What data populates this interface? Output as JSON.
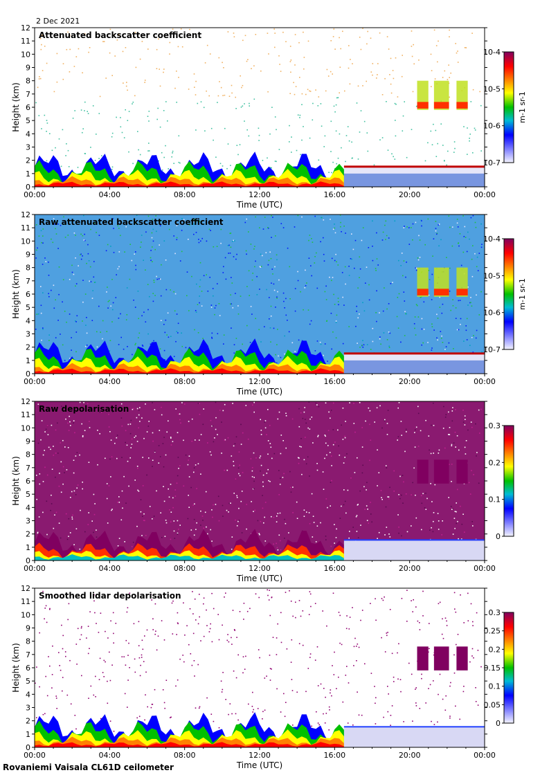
{
  "date_label": "2 Dec 2021",
  "footer": "Rovaniemi Vaisala CL61D ceilometer",
  "chart_data": [
    {
      "type": "heatmap",
      "title": "Attenuated backscatter coefficient",
      "xlabel": "Time (UTC)",
      "ylabel": "Height (km)",
      "xlim": [
        0,
        24
      ],
      "ylim": [
        0,
        12
      ],
      "x_ticks": [
        "00:00",
        "04:00",
        "08:00",
        "12:00",
        "16:00",
        "20:00",
        "00:00"
      ],
      "y_ticks": [
        0,
        1,
        2,
        3,
        4,
        5,
        6,
        7,
        8,
        9,
        10,
        11,
        12
      ],
      "colorbar": {
        "scale": "log",
        "range": [
          1e-07,
          0.0001
        ],
        "tick_labels": [
          "10-7",
          "10-6",
          "10-5",
          "10-4"
        ],
        "unit": "m-1 sr-1"
      },
      "grid": false
    },
    {
      "type": "heatmap",
      "title": "Raw attenuated backscatter coefficient",
      "xlabel": "Time (UTC)",
      "ylabel": "Height (km)",
      "xlim": [
        0,
        24
      ],
      "ylim": [
        0,
        12
      ],
      "x_ticks": [
        "00:00",
        "04:00",
        "08:00",
        "12:00",
        "16:00",
        "20:00",
        "00:00"
      ],
      "y_ticks": [
        0,
        1,
        2,
        3,
        4,
        5,
        6,
        7,
        8,
        9,
        10,
        11,
        12
      ],
      "colorbar": {
        "scale": "log",
        "range": [
          1e-07,
          0.0001
        ],
        "tick_labels": [
          "10-7",
          "10-6",
          "10-5",
          "10-4"
        ],
        "unit": "m-1 sr-1"
      },
      "grid": false
    },
    {
      "type": "heatmap",
      "title": "Raw depolarisation",
      "xlabel": "Time (UTC)",
      "ylabel": "Height (km)",
      "xlim": [
        0,
        24
      ],
      "ylim": [
        0,
        12
      ],
      "x_ticks": [
        "00:00",
        "04:00",
        "08:00",
        "12:00",
        "16:00",
        "20:00",
        "00:00"
      ],
      "y_ticks": [
        0,
        1,
        2,
        3,
        4,
        5,
        6,
        7,
        8,
        9,
        10,
        11,
        12
      ],
      "colorbar": {
        "scale": "linear",
        "range": [
          0,
          0.3
        ],
        "tick_labels": [
          "0",
          "0.1",
          "0.2",
          "0.3"
        ],
        "unit": ""
      },
      "grid": false
    },
    {
      "type": "heatmap",
      "title": "Smoothed lidar depolarisation",
      "xlabel": "Time (UTC)",
      "ylabel": "Height (km)",
      "xlim": [
        0,
        24
      ],
      "ylim": [
        0,
        12
      ],
      "x_ticks": [
        "00:00",
        "04:00",
        "08:00",
        "12:00",
        "16:00",
        "20:00",
        "00:00"
      ],
      "y_ticks": [
        0,
        1,
        2,
        3,
        4,
        5,
        6,
        7,
        8,
        9,
        10,
        11,
        12
      ],
      "colorbar": {
        "scale": "linear",
        "range": [
          0,
          0.3
        ],
        "tick_labels": [
          "0",
          "0.05",
          "0.1",
          "0.15",
          "0.2",
          "0.25",
          "0.3"
        ],
        "unit": ""
      },
      "grid": false
    }
  ]
}
